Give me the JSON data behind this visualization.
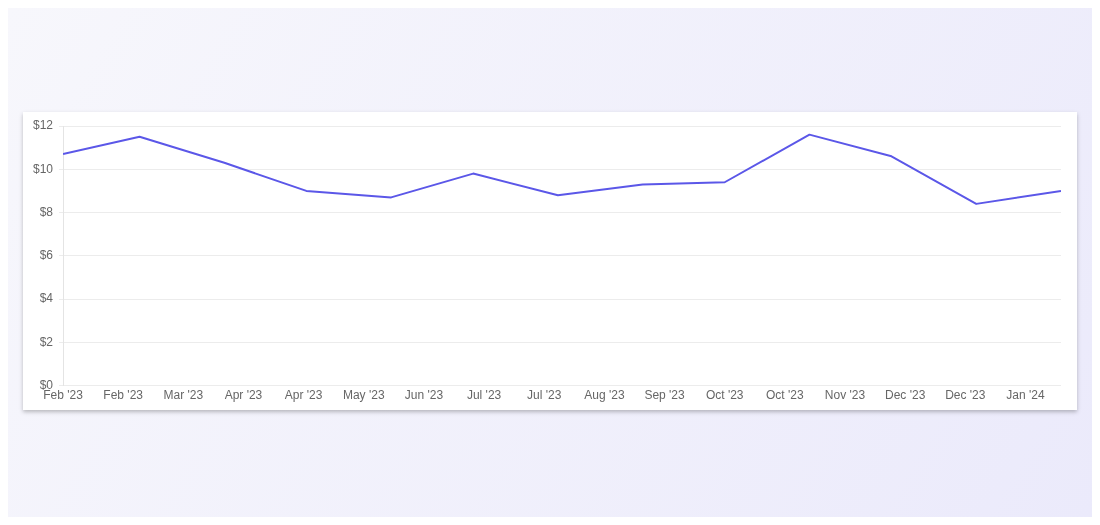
{
  "chart_data": {
    "type": "line",
    "x": [
      "2023-02-01",
      "2023-03-01",
      "2023-04-01",
      "2023-05-01",
      "2023-06-01",
      "2023-07-01",
      "2023-08-01",
      "2023-09-01",
      "2023-10-01",
      "2023-11-01",
      "2023-12-01",
      "2024-01-01",
      "2024-02-01"
    ],
    "series": [
      {
        "color": "#5b57e8",
        "values": [
          10.7,
          11.5,
          10.3,
          9.0,
          8.7,
          9.8,
          8.8,
          9.3,
          9.4,
          11.6,
          10.6,
          8.4,
          9.0
        ]
      }
    ],
    "xlim": [
      "2023-02-01",
      "2024-02-01"
    ],
    "xticks": [
      {
        "value": "2023-02-01",
        "label": "Feb '23"
      },
      {
        "value": "2023-02-23",
        "label": "Feb '23"
      },
      {
        "value": "2023-03-17",
        "label": "Mar '23"
      },
      {
        "value": "2023-04-08",
        "label": "Apr '23"
      },
      {
        "value": "2023-04-30",
        "label": "Apr '23"
      },
      {
        "value": "2023-05-22",
        "label": "May '23"
      },
      {
        "value": "2023-06-13",
        "label": "Jun '23"
      },
      {
        "value": "2023-07-05",
        "label": "Jul '23"
      },
      {
        "value": "2023-07-27",
        "label": "Jul '23"
      },
      {
        "value": "2023-08-18",
        "label": "Aug '23"
      },
      {
        "value": "2023-09-09",
        "label": "Sep '23"
      },
      {
        "value": "2023-10-01",
        "label": "Oct '23"
      },
      {
        "value": "2023-10-23",
        "label": "Oct '23"
      },
      {
        "value": "2023-11-14",
        "label": "Nov '23"
      },
      {
        "value": "2023-12-06",
        "label": "Dec '23"
      },
      {
        "value": "2023-12-28",
        "label": "Dec '23"
      },
      {
        "value": "2024-01-19",
        "label": "Jan '24"
      }
    ],
    "ylim": [
      0,
      12
    ],
    "yticks": [
      {
        "value": 0,
        "label": "$0"
      },
      {
        "value": 2,
        "label": "$2"
      },
      {
        "value": 4,
        "label": "$4"
      },
      {
        "value": 6,
        "label": "$6"
      },
      {
        "value": 8,
        "label": "$8"
      },
      {
        "value": 10,
        "label": "$10"
      },
      {
        "value": 12,
        "label": "$12"
      }
    ],
    "grid": "y",
    "legend": false,
    "marker": "none",
    "line_style": "solid"
  }
}
